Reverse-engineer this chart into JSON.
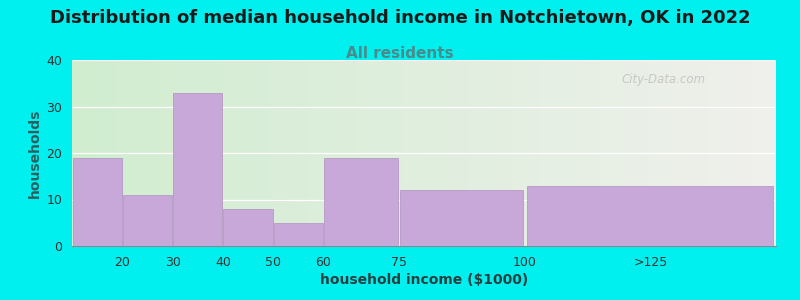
{
  "title": "Distribution of median household income in Notchietown, OK in 2022",
  "subtitle": "All residents",
  "xlabel": "household income ($1000)",
  "ylabel": "households",
  "categories": [
    "20",
    "30",
    "40",
    "50",
    "60",
    "75",
    "100",
    ">125"
  ],
  "values": [
    19,
    11,
    33,
    8,
    5,
    19,
    12,
    13
  ],
  "bar_color": "#C8A8D8",
  "bar_edge_color": "#B090C0",
  "background_color": "#00EFEF",
  "plot_bg_left": "#D0EDD0",
  "plot_bg_right": "#F0F0EC",
  "ylim": [
    0,
    40
  ],
  "yticks": [
    0,
    10,
    20,
    30,
    40
  ],
  "title_fontsize": 13,
  "subtitle_fontsize": 11,
  "axis_label_fontsize": 10,
  "watermark": "City-Data.com",
  "title_color": "#1a1a1a",
  "subtitle_color": "#4a8a8a",
  "ylabel_color": "#2a6060",
  "xlabel_color": "#2a4040"
}
